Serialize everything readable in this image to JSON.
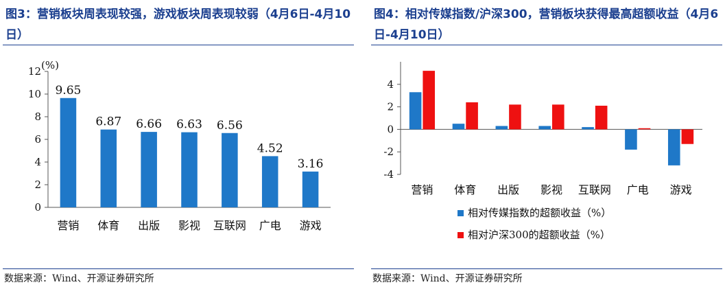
{
  "left": {
    "title": "图3：营销板块周表现较强，游戏板块周表现较弱（4月6日-4月10日）",
    "source": "数据来源：Wind、开源证券研究所",
    "chart_data": {
      "type": "bar",
      "categories": [
        "营销",
        "体育",
        "出版",
        "影视",
        "互联网",
        "广电",
        "游戏"
      ],
      "values": [
        9.65,
        6.87,
        6.66,
        6.63,
        6.56,
        4.52,
        3.16
      ],
      "data_labels": [
        "9.65",
        "6.87",
        "6.66",
        "6.63",
        "6.56",
        "4.52",
        "3.16"
      ],
      "yunit": "(%)",
      "ylim": [
        0,
        12
      ],
      "yticks": [
        0,
        2,
        4,
        6,
        8,
        10,
        12
      ],
      "grid": false,
      "bar_color": "#1f78c8"
    }
  },
  "right": {
    "title": "图4：相对传媒指数/沪深300，营销板块获得最高超额收益（4月6日-4月10日）",
    "source": "数据来源：Wind、开源证券研究所",
    "chart_data": {
      "type": "bar",
      "categories": [
        "营销",
        "体育",
        "出版",
        "影视",
        "互联网",
        "广电",
        "游戏"
      ],
      "series": [
        {
          "name": "相对传媒指数的超额收益（%）",
          "values": [
            3.3,
            0.5,
            0.3,
            0.3,
            0.2,
            -1.8,
            -3.2
          ],
          "color": "#1f78c8"
        },
        {
          "name": "相对沪深300的超额收益（%）",
          "values": [
            5.2,
            2.4,
            2.2,
            2.2,
            2.1,
            0.1,
            -1.3
          ],
          "color": "#ee1111"
        }
      ],
      "ylim": [
        -4,
        6
      ],
      "yticks": [
        -4,
        -2,
        0,
        2,
        4
      ],
      "grid": false,
      "legend_position": "bottom"
    }
  }
}
